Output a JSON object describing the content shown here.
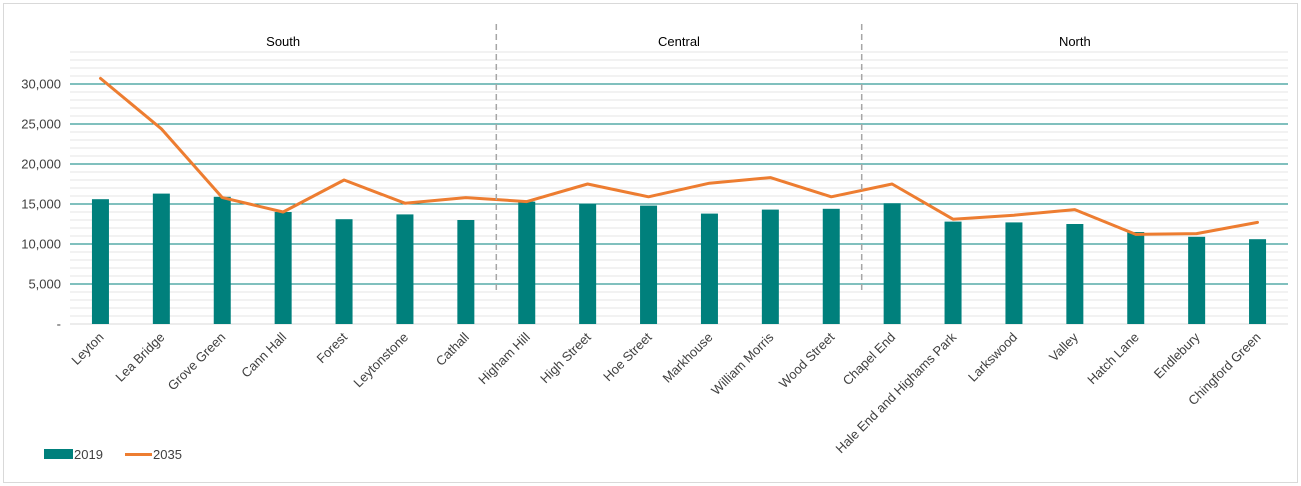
{
  "chart_data": {
    "type": "bar",
    "categories": [
      "Leyton",
      "Lea Bridge",
      "Grove Green",
      "Cann Hall",
      "Forest",
      "Leytonstone",
      "Cathall",
      "Higham Hill",
      "High Street",
      "Hoe Street",
      "Markhouse",
      "William Morris",
      "Wood Street",
      "Chapel End",
      "Hale End and Highams Park",
      "Larkswood",
      "Valley",
      "Hatch Lane",
      "Endlebury",
      "Chingford Green"
    ],
    "series": [
      {
        "name": "2019",
        "type": "bar",
        "color": "#00807c",
        "values": [
          15600,
          16300,
          15900,
          14000,
          13100,
          13700,
          13000,
          15300,
          15000,
          14800,
          13800,
          14300,
          14400,
          15100,
          12800,
          12700,
          12500,
          11500,
          10900,
          10600
        ]
      },
      {
        "name": "2035",
        "type": "line",
        "color": "#ed7d31",
        "values": [
          30700,
          24400,
          15800,
          14000,
          18000,
          15100,
          15800,
          15300,
          17500,
          15900,
          17600,
          18300,
          15900,
          17500,
          13100,
          13600,
          14300,
          11200,
          11300,
          12700
        ]
      }
    ],
    "y_ticks": [
      "-",
      "5,000",
      "10,000",
      "15,000",
      "20,000",
      "25,000",
      "30,000"
    ],
    "ylim": [
      0,
      35000
    ],
    "major_gridlines": [
      10000,
      15000,
      20000,
      25000,
      30000
    ],
    "grid": true,
    "regions": [
      {
        "label": "South",
        "start": 0,
        "end": 6
      },
      {
        "label": "Central",
        "start": 7,
        "end": 12
      },
      {
        "label": "North",
        "start": 13,
        "end": 19
      }
    ],
    "legend_position": "bottom-left",
    "title": "",
    "xlabel": "",
    "ylabel": ""
  }
}
